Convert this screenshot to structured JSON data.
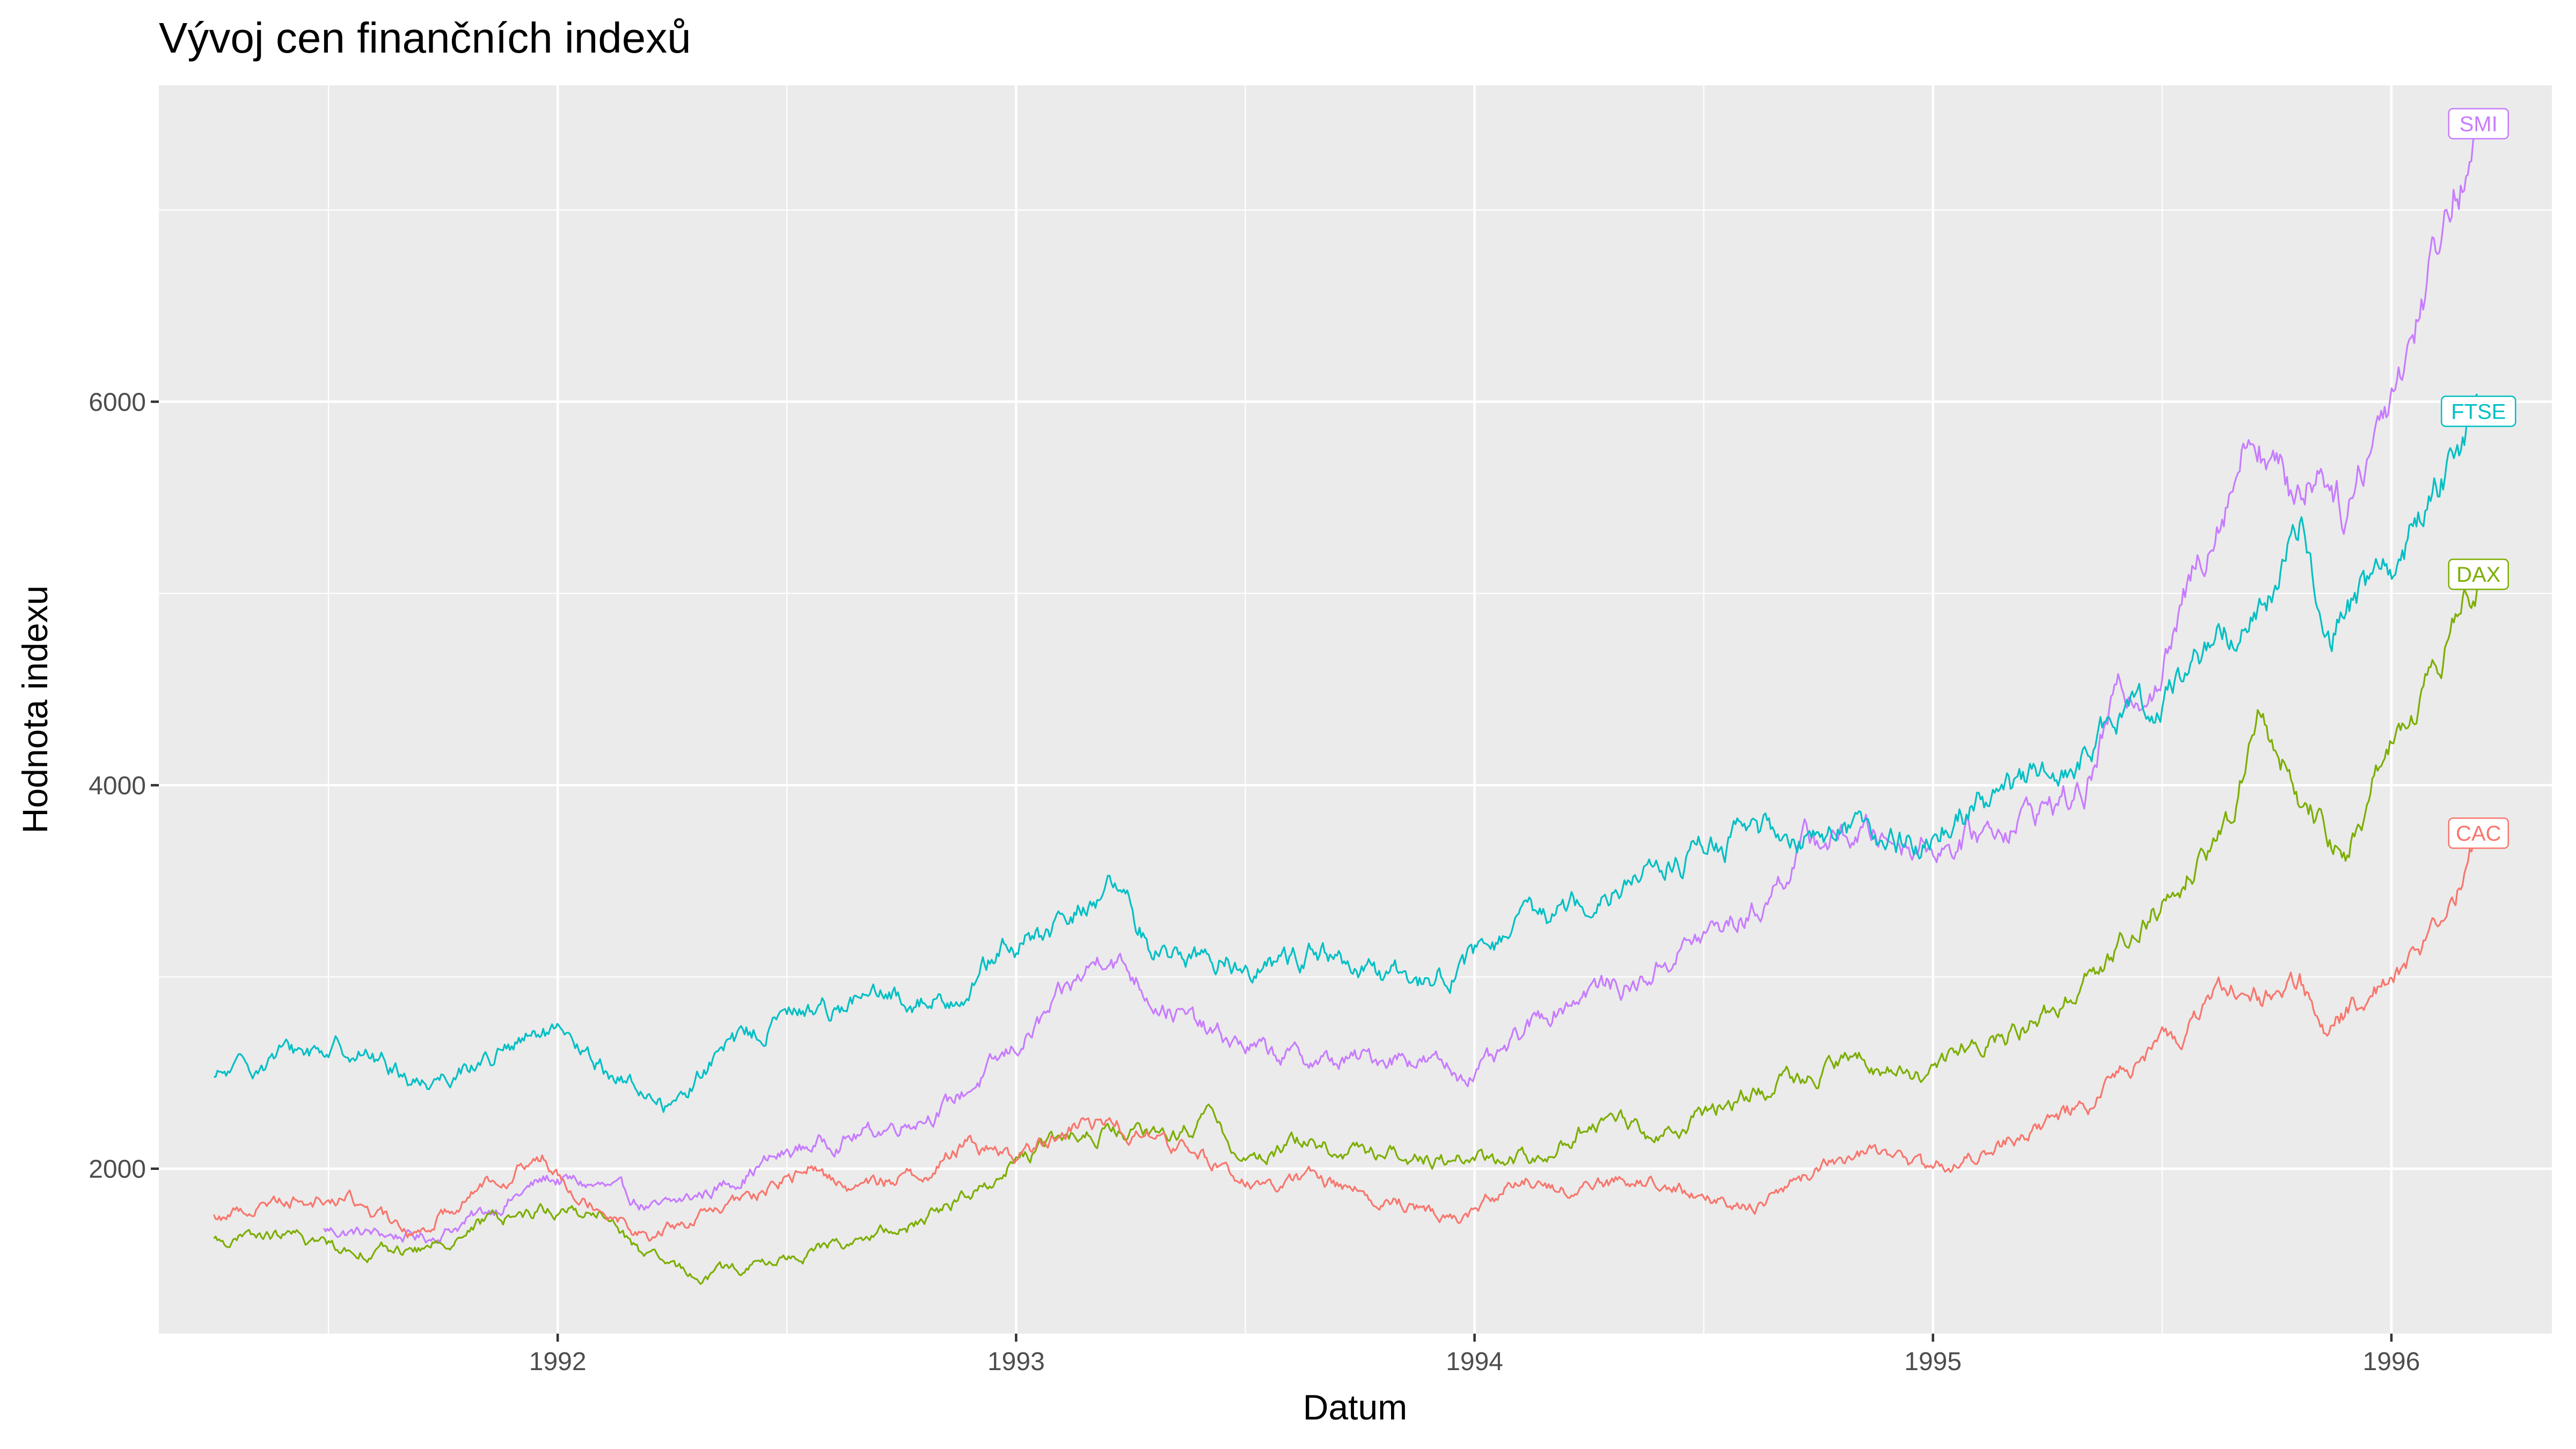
{
  "chart_data": {
    "type": "line",
    "title": "Vývoj cen finančních indexů",
    "xlabel": "Datum",
    "ylabel": "Hodnota indexu",
    "xlim": [
      1991.13,
      1996.35
    ],
    "ylim": [
      1140,
      7650
    ],
    "x_ticks": [
      1992,
      1993,
      1994,
      1995,
      1996
    ],
    "x_tick_labels": [
      "1992",
      "1993",
      "1994",
      "1995",
      "1996"
    ],
    "y_ticks": [
      2000,
      4000,
      6000
    ],
    "y_tick_labels": [
      "2000",
      "4000",
      "6000"
    ],
    "grid": true,
    "legend": "none (direct labels at line ends)",
    "colors": {
      "panel_bg": "#ebebeb",
      "grid": "#ffffff"
    },
    "series": [
      {
        "name": "SMI",
        "color": "#c77cff",
        "points": [
          [
            1991.49,
            1680
          ],
          [
            1991.6,
            1660
          ],
          [
            1991.72,
            1640
          ],
          [
            1991.85,
            1780
          ],
          [
            1991.98,
            1950
          ],
          [
            1992.1,
            1900
          ],
          [
            1992.22,
            1780
          ],
          [
            1992.35,
            1900
          ],
          [
            1992.45,
            2030
          ],
          [
            1992.55,
            2120
          ],
          [
            1992.7,
            2200
          ],
          [
            1992.85,
            2330
          ],
          [
            1992.97,
            2560
          ],
          [
            1993.08,
            2820
          ],
          [
            1993.2,
            3150
          ],
          [
            1993.3,
            2900
          ],
          [
            1993.42,
            2700
          ],
          [
            1993.55,
            2600
          ],
          [
            1993.7,
            2550
          ],
          [
            1993.85,
            2600
          ],
          [
            1993.97,
            2500
          ],
          [
            1994.05,
            2550
          ],
          [
            1994.15,
            2800
          ],
          [
            1994.25,
            2950
          ],
          [
            1994.35,
            2950
          ],
          [
            1994.45,
            3150
          ],
          [
            1994.55,
            3270
          ],
          [
            1994.62,
            3350
          ],
          [
            1994.72,
            3700
          ],
          [
            1994.85,
            3750
          ],
          [
            1994.97,
            3700
          ],
          [
            1995.05,
            3700
          ],
          [
            1995.15,
            3800
          ],
          [
            1995.25,
            3900
          ],
          [
            1995.33,
            3950
          ],
          [
            1995.4,
            4450
          ],
          [
            1995.5,
            4600
          ],
          [
            1995.6,
            5300
          ],
          [
            1995.7,
            5900
          ],
          [
            1995.78,
            5500
          ],
          [
            1995.85,
            5700
          ],
          [
            1995.9,
            5450
          ],
          [
            1995.97,
            5900
          ],
          [
            1996.05,
            6400
          ],
          [
            1996.12,
            7000
          ],
          [
            1996.19,
            7450
          ]
        ]
      },
      {
        "name": "FTSE",
        "color": "#00bfc4",
        "points": [
          [
            1991.25,
            2460
          ],
          [
            1991.4,
            2600
          ],
          [
            1991.55,
            2640
          ],
          [
            1991.7,
            2450
          ],
          [
            1991.85,
            2580
          ],
          [
            1991.98,
            2700
          ],
          [
            1992.1,
            2520
          ],
          [
            1992.25,
            2320
          ],
          [
            1992.35,
            2600
          ],
          [
            1992.5,
            2800
          ],
          [
            1992.65,
            2880
          ],
          [
            1992.85,
            2880
          ],
          [
            1992.97,
            3130
          ],
          [
            1993.1,
            3250
          ],
          [
            1993.2,
            3480
          ],
          [
            1993.3,
            3150
          ],
          [
            1993.42,
            3100
          ],
          [
            1993.55,
            3050
          ],
          [
            1993.65,
            3150
          ],
          [
            1993.75,
            3000
          ],
          [
            1993.88,
            2980
          ],
          [
            1993.97,
            3050
          ],
          [
            1994.1,
            3250
          ],
          [
            1994.2,
            3380
          ],
          [
            1994.3,
            3500
          ],
          [
            1994.45,
            3600
          ],
          [
            1994.6,
            3750
          ],
          [
            1994.7,
            3750
          ],
          [
            1994.8,
            3800
          ],
          [
            1994.9,
            3700
          ],
          [
            1994.97,
            3700
          ],
          [
            1995.05,
            3850
          ],
          [
            1995.15,
            3950
          ],
          [
            1995.3,
            4100
          ],
          [
            1995.4,
            4300
          ],
          [
            1995.5,
            4500
          ],
          [
            1995.6,
            4700
          ],
          [
            1995.72,
            4950
          ],
          [
            1995.8,
            5300
          ],
          [
            1995.87,
            4850
          ],
          [
            1995.97,
            5100
          ],
          [
            1996.07,
            5400
          ],
          [
            1996.14,
            5750
          ],
          [
            1996.19,
            5950
          ]
        ]
      },
      {
        "name": "DAX",
        "color": "#7cae00",
        "points": [
          [
            1991.25,
            1620
          ],
          [
            1991.4,
            1650
          ],
          [
            1991.55,
            1580
          ],
          [
            1991.7,
            1570
          ],
          [
            1991.85,
            1730
          ],
          [
            1991.97,
            1790
          ],
          [
            1992.1,
            1760
          ],
          [
            1992.2,
            1520
          ],
          [
            1992.3,
            1440
          ],
          [
            1992.45,
            1500
          ],
          [
            1992.6,
            1600
          ],
          [
            1992.75,
            1680
          ],
          [
            1992.9,
            1870
          ],
          [
            1993.0,
            2050
          ],
          [
            1993.1,
            2150
          ],
          [
            1993.2,
            2200
          ],
          [
            1993.3,
            2150
          ],
          [
            1993.42,
            2250
          ],
          [
            1993.5,
            2050
          ],
          [
            1993.62,
            2150
          ],
          [
            1993.72,
            2080
          ],
          [
            1993.85,
            2080
          ],
          [
            1993.95,
            2050
          ],
          [
            1994.1,
            2050
          ],
          [
            1994.2,
            2150
          ],
          [
            1994.3,
            2300
          ],
          [
            1994.4,
            2150
          ],
          [
            1994.55,
            2350
          ],
          [
            1994.7,
            2480
          ],
          [
            1994.85,
            2550
          ],
          [
            1994.97,
            2500
          ],
          [
            1995.1,
            2650
          ],
          [
            1995.25,
            2800
          ],
          [
            1995.35,
            3050
          ],
          [
            1995.45,
            3300
          ],
          [
            1995.55,
            3500
          ],
          [
            1995.65,
            3850
          ],
          [
            1995.72,
            4400
          ],
          [
            1995.8,
            3950
          ],
          [
            1995.85,
            3800
          ],
          [
            1995.9,
            3700
          ],
          [
            1995.97,
            4050
          ],
          [
            1996.07,
            4500
          ],
          [
            1996.14,
            4800
          ],
          [
            1996.19,
            5100
          ]
        ]
      },
      {
        "name": "CAC",
        "color": "#f8766d",
        "points": [
          [
            1991.25,
            1740
          ],
          [
            1991.4,
            1850
          ],
          [
            1991.55,
            1840
          ],
          [
            1991.68,
            1650
          ],
          [
            1991.85,
            1950
          ],
          [
            1991.97,
            2050
          ],
          [
            1992.1,
            1800
          ],
          [
            1992.2,
            1650
          ],
          [
            1992.32,
            1750
          ],
          [
            1992.45,
            1880
          ],
          [
            1992.55,
            2000
          ],
          [
            1992.65,
            1900
          ],
          [
            1992.8,
            1980
          ],
          [
            1992.9,
            2150
          ],
          [
            1993.0,
            2050
          ],
          [
            1993.1,
            2200
          ],
          [
            1993.2,
            2250
          ],
          [
            1993.35,
            2120
          ],
          [
            1993.45,
            2000
          ],
          [
            1993.55,
            1900
          ],
          [
            1993.65,
            1950
          ],
          [
            1993.8,
            1850
          ],
          [
            1993.97,
            1750
          ],
          [
            1994.1,
            1950
          ],
          [
            1994.2,
            1900
          ],
          [
            1994.35,
            1950
          ],
          [
            1994.5,
            1850
          ],
          [
            1994.6,
            1800
          ],
          [
            1994.7,
            1950
          ],
          [
            1994.8,
            2050
          ],
          [
            1994.92,
            2100
          ],
          [
            1994.98,
            1980
          ],
          [
            1995.1,
            2050
          ],
          [
            1995.2,
            2200
          ],
          [
            1995.35,
            2350
          ],
          [
            1995.45,
            2550
          ],
          [
            1995.55,
            2700
          ],
          [
            1995.65,
            2950
          ],
          [
            1995.73,
            2900
          ],
          [
            1995.8,
            3000
          ],
          [
            1995.86,
            2750
          ],
          [
            1995.97,
            2950
          ],
          [
            1996.07,
            3150
          ],
          [
            1996.14,
            3450
          ],
          [
            1996.19,
            3750
          ]
        ]
      }
    ]
  }
}
